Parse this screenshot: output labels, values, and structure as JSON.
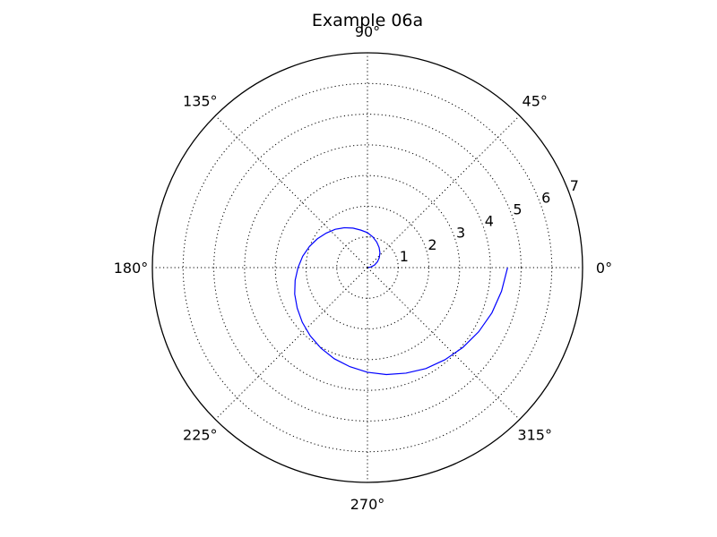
{
  "chart_data": {
    "type": "line",
    "projection": "polar",
    "title": "Example 06a",
    "theta_ticks": [
      0,
      45,
      90,
      135,
      180,
      225,
      270,
      315
    ],
    "theta_tick_labels": [
      "0°",
      "45°",
      "90°",
      "135°",
      "180°",
      "225°",
      "270°",
      "315°"
    ],
    "r_ticks": [
      1,
      2,
      3,
      4,
      5,
      6,
      7
    ],
    "r_tick_labels": [
      "1",
      "2",
      "3",
      "4",
      "5",
      "6",
      "7"
    ],
    "r_label_angle_deg": 22.5,
    "rlim": [
      0,
      7
    ],
    "grid": true,
    "series": [
      {
        "color": "#0000ff",
        "theta_deg": [
          0,
          10,
          20,
          30,
          40,
          50,
          60,
          70,
          80,
          90,
          100,
          110,
          120,
          130,
          140,
          150,
          160,
          170,
          180,
          190,
          200,
          210,
          220,
          230,
          240,
          250,
          260,
          270,
          280,
          290,
          300,
          310,
          320,
          330,
          340,
          350,
          360
        ],
        "r": [
          0.019,
          0.114,
          0.245,
          0.374,
          0.503,
          0.631,
          0.758,
          0.884,
          1.013,
          1.14,
          1.24,
          1.37,
          1.5,
          1.63,
          1.75,
          1.88,
          2.01,
          2.14,
          2.26,
          2.39,
          2.52,
          2.64,
          2.77,
          2.9,
          3.03,
          3.16,
          3.28,
          3.41,
          3.54,
          3.66,
          3.8,
          3.92,
          4.05,
          4.18,
          4.31,
          4.43,
          4.56
        ]
      }
    ]
  }
}
